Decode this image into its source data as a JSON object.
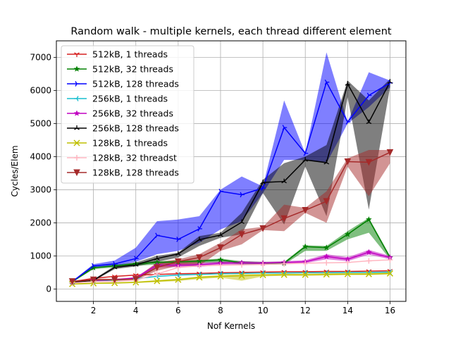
{
  "chart_data": {
    "type": "line",
    "title": "Random walk - multiple kernels, each thread different element",
    "xlabel": "Nof Kernels",
    "ylabel": "Cycles/Elem",
    "xlim": [
      0.25,
      16.75
    ],
    "ylim": [
      -375,
      7500
    ],
    "xticks": [
      2,
      4,
      6,
      8,
      10,
      12,
      14,
      16
    ],
    "yticks": [
      0,
      1000,
      2000,
      3000,
      4000,
      5000,
      6000,
      7000
    ],
    "grid": true,
    "legend_position": "top-left",
    "x": [
      1,
      2,
      3,
      4,
      5,
      6,
      7,
      8,
      9,
      10,
      11,
      12,
      13,
      14,
      15,
      16
    ],
    "series": [
      {
        "name": "512kB, 1 threads",
        "color": "#d62020",
        "marker": "tri_down",
        "values": [
          220,
          320,
          380,
          420,
          440,
          460,
          470,
          490,
          500,
          510,
          520,
          520,
          530,
          530,
          540,
          550
        ]
      },
      {
        "name": "512kB, 32 threads",
        "color": "#008000",
        "marker": "star",
        "values": [
          220,
          640,
          700,
          760,
          800,
          820,
          840,
          880,
          790,
          780,
          780,
          1280,
          1250,
          1650,
          2100,
          950
        ],
        "band_low": [
          200,
          600,
          650,
          700,
          740,
          760,
          780,
          800,
          740,
          730,
          740,
          1150,
          1150,
          1500,
          1700,
          900
        ],
        "band_high": [
          240,
          680,
          740,
          800,
          840,
          860,
          880,
          920,
          840,
          820,
          820,
          1320,
          1300,
          1750,
          2150,
          1000
        ]
      },
      {
        "name": "512kB, 128 threads",
        "color": "#0000ff",
        "marker": "tri_right",
        "values": [
          220,
          700,
          760,
          920,
          1620,
          1500,
          1820,
          2950,
          2850,
          3050,
          4880,
          4100,
          6250,
          5050,
          5850,
          6230
        ],
        "band_low": [
          200,
          650,
          700,
          820,
          1050,
          1150,
          1400,
          1800,
          2050,
          2900,
          3900,
          3900,
          3800,
          5000,
          5500,
          6100
        ],
        "band_high": [
          240,
          750,
          860,
          1250,
          2050,
          2100,
          2200,
          3000,
          3400,
          3100,
          5700,
          4100,
          7150,
          5050,
          6550,
          6300
        ]
      },
      {
        "name": "256kB, 1 threads",
        "color": "#17becf",
        "marker": "tri_left",
        "values": [
          200,
          240,
          270,
          310,
          380,
          420,
          440,
          460,
          470,
          480,
          480,
          490,
          490,
          500,
          500,
          510
        ]
      },
      {
        "name": "256kB, 32 threads",
        "color": "#c000c0",
        "marker": "star",
        "values": [
          220,
          260,
          280,
          330,
          720,
          720,
          730,
          780,
          790,
          780,
          800,
          820,
          980,
          900,
          1110,
          950
        ],
        "band_low": [
          200,
          240,
          260,
          300,
          650,
          660,
          670,
          720,
          740,
          740,
          760,
          780,
          900,
          840,
          1040,
          900
        ],
        "band_high": [
          240,
          280,
          300,
          360,
          780,
          780,
          790,
          830,
          840,
          820,
          840,
          870,
          1050,
          960,
          1180,
          1000
        ]
      },
      {
        "name": "256kB, 128 threads",
        "color": "#000000",
        "marker": "tri_up",
        "values": [
          200,
          260,
          650,
          730,
          920,
          1060,
          1490,
          1630,
          2020,
          3220,
          3250,
          3900,
          3820,
          6200,
          5040,
          6260
        ],
        "band_low": [
          180,
          240,
          600,
          680,
          820,
          950,
          1300,
          1550,
          1650,
          2900,
          1950,
          3700,
          2200,
          5800,
          2400,
          6100
        ],
        "band_high": [
          220,
          290,
          700,
          800,
          1000,
          1100,
          1600,
          1700,
          2300,
          3300,
          3800,
          4000,
          4350,
          6300,
          5700,
          6350
        ]
      },
      {
        "name": "128kB, 1 threads",
        "color": "#bfbf00",
        "marker": "x",
        "values": [
          150,
          170,
          180,
          200,
          240,
          280,
          350,
          380,
          400,
          420,
          430,
          430,
          440,
          450,
          450,
          470
        ],
        "band_low": [
          130,
          150,
          160,
          180,
          210,
          240,
          300,
          340,
          250,
          380,
          400,
          400,
          410,
          420,
          420,
          440
        ],
        "band_high": [
          170,
          190,
          200,
          220,
          270,
          310,
          380,
          420,
          450,
          450,
          460,
          460,
          470,
          480,
          480,
          500
        ]
      },
      {
        "name": "128kB, 32 threadst",
        "color": "#ffb6c1",
        "marker": "plus",
        "values": [
          180,
          220,
          230,
          270,
          450,
          650,
          700,
          720,
          730,
          740,
          760,
          780,
          790,
          800,
          850,
          880
        ]
      },
      {
        "name": "128kB, 128 threads",
        "color": "#a52a2a",
        "marker": "v",
        "values": [
          230,
          280,
          280,
          300,
          650,
          830,
          950,
          1250,
          1650,
          1830,
          2130,
          2380,
          2650,
          3850,
          3830,
          4130
        ],
        "band_low": [
          200,
          250,
          250,
          270,
          550,
          700,
          700,
          1150,
          1350,
          1780,
          1750,
          2300,
          2000,
          3700,
          2800,
          3800
        ],
        "band_high": [
          250,
          310,
          310,
          330,
          800,
          900,
          1050,
          1400,
          1800,
          1880,
          2550,
          2450,
          2950,
          3950,
          4200,
          4200
        ]
      }
    ]
  }
}
